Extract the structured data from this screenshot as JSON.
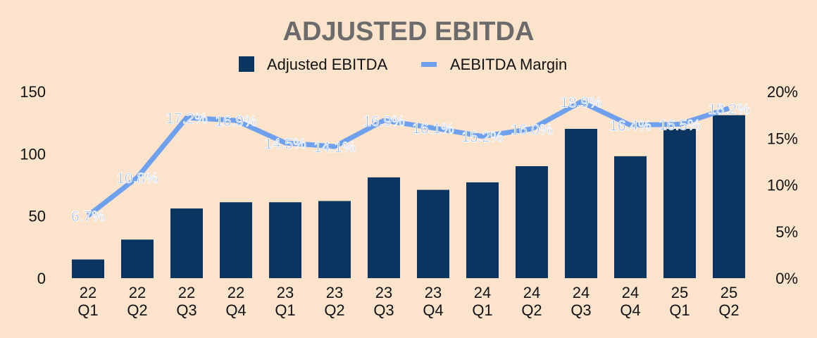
{
  "chart_data": {
    "type": "bar",
    "title": "ADJUSTED EBITDA",
    "categories": [
      [
        "22",
        "Q1"
      ],
      [
        "22",
        "Q2"
      ],
      [
        "22",
        "Q3"
      ],
      [
        "22",
        "Q4"
      ],
      [
        "23",
        "Q1"
      ],
      [
        "23",
        "Q2"
      ],
      [
        "23",
        "Q3"
      ],
      [
        "23",
        "Q4"
      ],
      [
        "24",
        "Q1"
      ],
      [
        "24",
        "Q2"
      ],
      [
        "24",
        "Q3"
      ],
      [
        "24",
        "Q4"
      ],
      [
        "25",
        "Q1"
      ],
      [
        "25",
        "Q2"
      ]
    ],
    "series": [
      {
        "name": "Adjusted EBITDA",
        "type": "bar",
        "axis": "left",
        "color": "#0a3560",
        "values": [
          15,
          31,
          56,
          61,
          61,
          62,
          81,
          71,
          77,
          90,
          120,
          98,
          120,
          131
        ]
      },
      {
        "name": "AEBITDA Margin",
        "type": "line",
        "axis": "right",
        "color": "#6fa0ee",
        "values": [
          6.7,
          10.8,
          17.2,
          16.9,
          14.5,
          14.1,
          16.9,
          16.1,
          15.2,
          16.0,
          18.9,
          16.4,
          16.5,
          18.2
        ],
        "labels": [
          "6.7%",
          "10.8%",
          "17.2%",
          "16.9%",
          "14.5%",
          "14.1%",
          "16.9%",
          "16.1%",
          "15.2%",
          "16.0%",
          "18.9%",
          "16.4%",
          "16.5%",
          "18.2%"
        ]
      }
    ],
    "y_left": {
      "ylim": [
        0,
        150
      ],
      "ticks": [
        "0",
        "50",
        "100",
        "150"
      ]
    },
    "y_right": {
      "ylim": [
        0,
        20
      ],
      "ticks": [
        "0%",
        "5%",
        "10%",
        "15%",
        "20%"
      ]
    },
    "legend": "top-center",
    "grid": false,
    "background": "#fce4cc"
  }
}
